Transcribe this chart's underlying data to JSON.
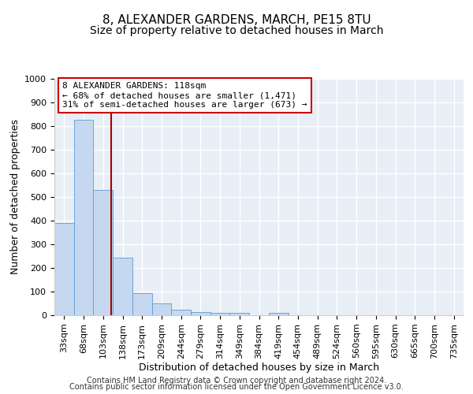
{
  "title": "8, ALEXANDER GARDENS, MARCH, PE15 8TU",
  "subtitle": "Size of property relative to detached houses in March",
  "xlabel": "Distribution of detached houses by size in March",
  "ylabel": "Number of detached properties",
  "bar_values": [
    390,
    828,
    530,
    243,
    95,
    50,
    22,
    15,
    10,
    10,
    0,
    10,
    0,
    0,
    0,
    0,
    0,
    0,
    0,
    0,
    0
  ],
  "bar_labels": [
    "33sqm",
    "68sqm",
    "103sqm",
    "138sqm",
    "173sqm",
    "209sqm",
    "244sqm",
    "279sqm",
    "314sqm",
    "349sqm",
    "384sqm",
    "419sqm",
    "454sqm",
    "489sqm",
    "524sqm",
    "560sqm",
    "595sqm",
    "630sqm",
    "665sqm",
    "700sqm",
    "735sqm"
  ],
  "bar_color": "#c5d8ef",
  "bar_edge_color": "#5b9bd5",
  "background_color": "#e8eef6",
  "grid_color": "#ffffff",
  "ylim": [
    0,
    1000
  ],
  "yticks": [
    0,
    100,
    200,
    300,
    400,
    500,
    600,
    700,
    800,
    900,
    1000
  ],
  "vline_color": "#aa0000",
  "annotation_line1": "8 ALEXANDER GARDENS: 118sqm",
  "annotation_line2": "← 68% of detached houses are smaller (1,471)",
  "annotation_line3": "31% of semi-detached houses are larger (673) →",
  "annotation_box_color": "#ffffff",
  "annotation_border_color": "#cc0000",
  "footer_line1": "Contains HM Land Registry data © Crown copyright and database right 2024.",
  "footer_line2": "Contains public sector information licensed under the Open Government Licence v3.0.",
  "title_fontsize": 11,
  "subtitle_fontsize": 10,
  "annotation_fontsize": 8,
  "axis_label_fontsize": 9,
  "tick_fontsize": 8,
  "footer_fontsize": 7
}
